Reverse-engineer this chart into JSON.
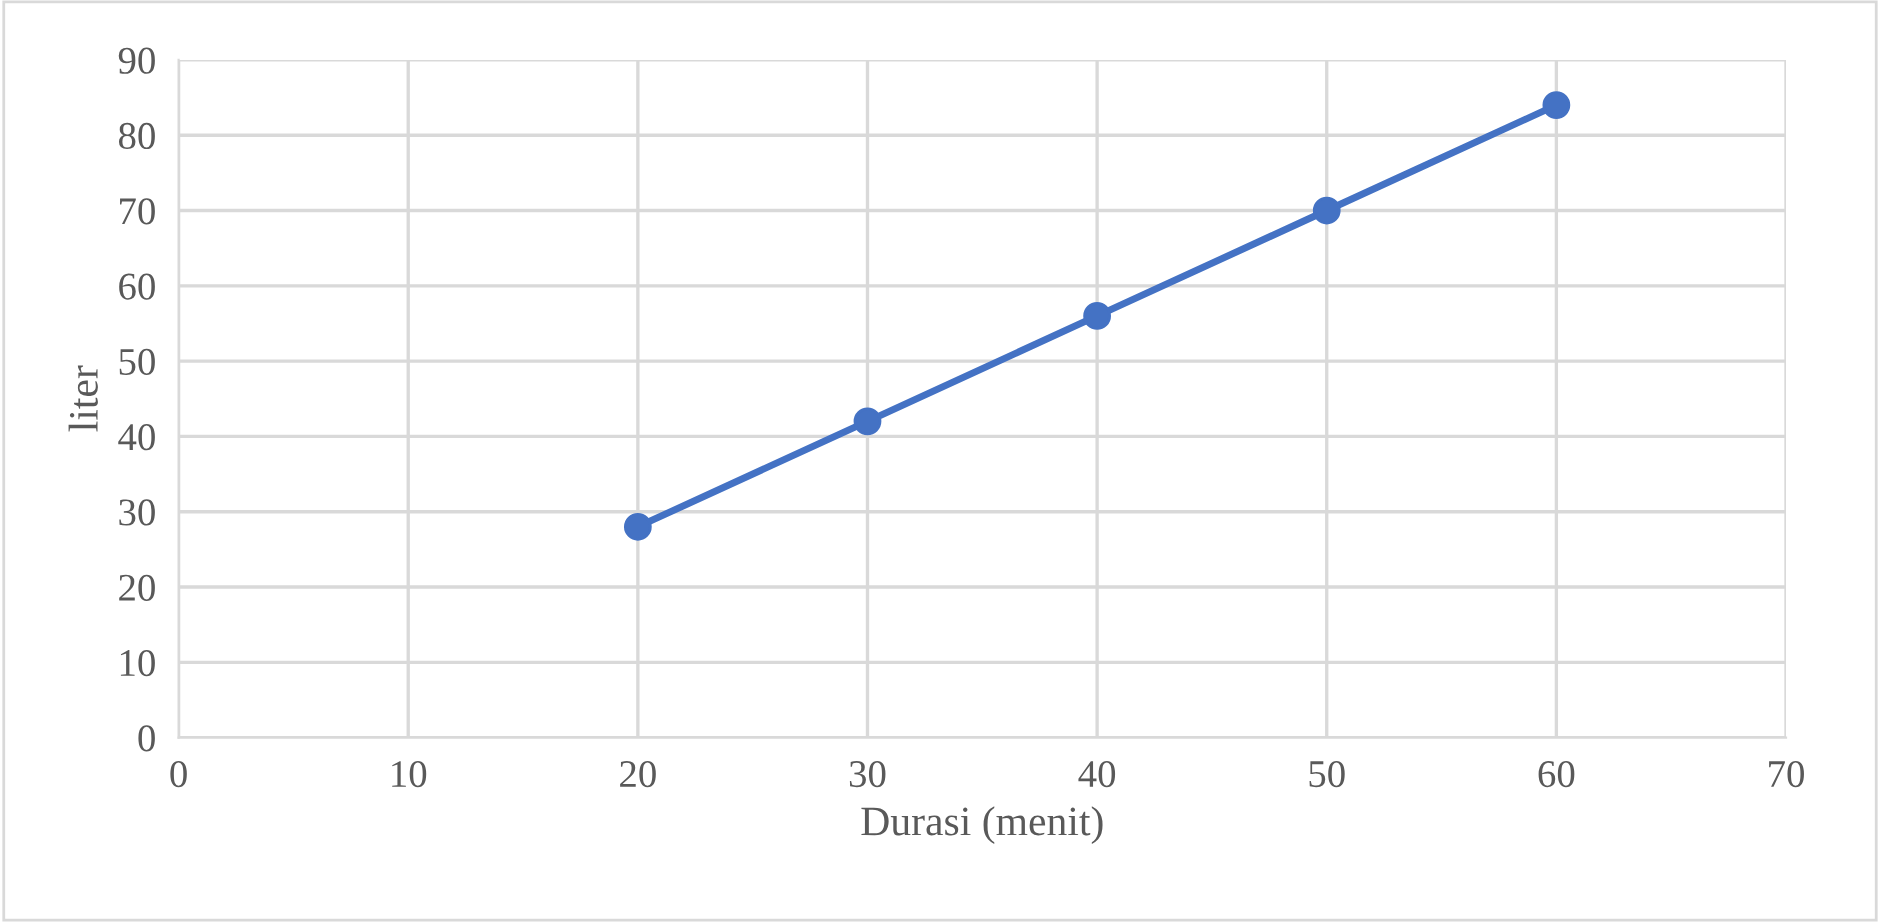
{
  "chart_data": {
    "type": "line",
    "xlabel": "Durasi (menit)",
    "ylabel": "liter",
    "x": [
      20,
      30,
      40,
      50,
      60
    ],
    "series": [
      {
        "color": "#4472c4",
        "values": [
          28,
          42,
          56,
          70,
          84
        ]
      }
    ],
    "xlim": [
      0,
      70
    ],
    "xticks": [
      0,
      10,
      20,
      30,
      40,
      50,
      60,
      70
    ],
    "ylim": [
      0,
      90
    ],
    "yticks": [
      0,
      10,
      20,
      30,
      40,
      50,
      60,
      70,
      80,
      90
    ],
    "grid": true,
    "marker": "circle",
    "line_style": "solid"
  }
}
